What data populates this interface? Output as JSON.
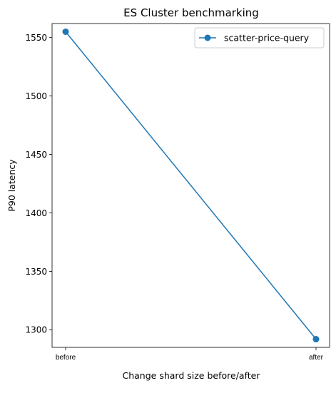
{
  "chart_data": {
    "type": "line",
    "title": "ES Cluster benchmarking",
    "xlabel": "Change shard size before/after",
    "ylabel": "P90 latency",
    "categories": [
      "before",
      "after"
    ],
    "series": [
      {
        "name": "scatter-price-query",
        "values": [
          1555,
          1292
        ],
        "color": "#1f77b4",
        "marker": "circle"
      }
    ],
    "ylim": [
      1285,
      1562
    ],
    "yticks": [
      1300,
      1350,
      1400,
      1450,
      1500,
      1550
    ],
    "grid": false,
    "legend_position": "top-right"
  }
}
